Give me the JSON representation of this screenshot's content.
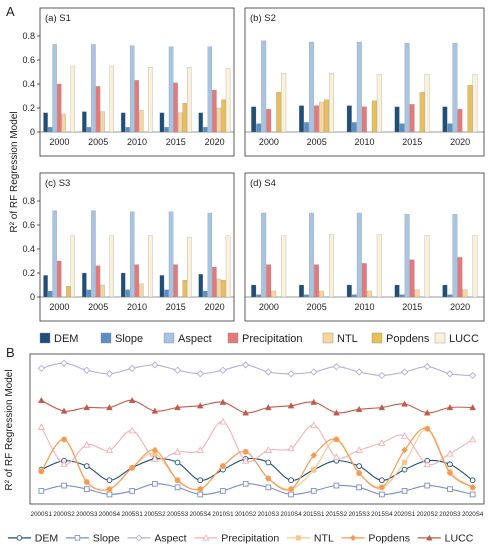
{
  "panel_labels": {
    "a": "A",
    "b": "B"
  },
  "variables": [
    "DEM",
    "Slope",
    "Aspect",
    "Precipitation",
    "NTL",
    "Popdens",
    "LUCC"
  ],
  "colors": {
    "DEM": "#1f4e79",
    "Slope": "#5b8fc3",
    "Aspect": "#a7c4e3",
    "Precipitation": "#e3797a",
    "NTL": "#f6d5a1",
    "Popdens": "#e8c05a",
    "LUCC": "#fbf1d9"
  },
  "line_colors": {
    "DEM": "#1f4e79",
    "Slope": "#7d8fc6",
    "Aspect": "#b3afd6",
    "Precipitation": "#f2b1b9",
    "NTL": "#f8c78d",
    "Popdens": "#f29a56",
    "LUCC": "#bd5b4c"
  },
  "chart_data": [
    {
      "type": "bar",
      "panel": "a",
      "title": "(a) S1",
      "categories": [
        "2000",
        "2005",
        "2010",
        "2015",
        "2020"
      ],
      "ylim": [
        0,
        0.8
      ],
      "yticks": [
        "0",
        "0.2",
        "0.4",
        "0.6",
        "0.8"
      ],
      "ylabel": "R² of RF Regression Model",
      "series": [
        {
          "name": "DEM",
          "values": [
            0.16,
            0.17,
            0.16,
            0.16,
            0.16
          ]
        },
        {
          "name": "Slope",
          "values": [
            0.04,
            0.04,
            0.04,
            0.04,
            0.04
          ]
        },
        {
          "name": "Aspect",
          "values": [
            0.73,
            0.73,
            0.72,
            0.71,
            0.71
          ]
        },
        {
          "name": "Precipitation",
          "values": [
            0.4,
            0.38,
            0.43,
            0.41,
            0.35
          ]
        },
        {
          "name": "NTL",
          "values": [
            0.15,
            0.17,
            0.18,
            0.16,
            0.2
          ]
        },
        {
          "name": "Popdens",
          "values": [
            0.0,
            0.0,
            0.0,
            0.24,
            0.27
          ]
        },
        {
          "name": "LUCC",
          "values": [
            0.55,
            0.55,
            0.54,
            0.54,
            0.53
          ]
        }
      ]
    },
    {
      "type": "bar",
      "panel": "b",
      "title": "(b) S2",
      "categories": [
        "2000",
        "2005",
        "2010",
        "2015",
        "2020"
      ],
      "ylim": [
        0,
        0.8
      ],
      "series": [
        {
          "name": "DEM",
          "values": [
            0.21,
            0.22,
            0.22,
            0.21,
            0.21
          ]
        },
        {
          "name": "Slope",
          "values": [
            0.07,
            0.08,
            0.08,
            0.07,
            0.07
          ]
        },
        {
          "name": "Aspect",
          "values": [
            0.76,
            0.75,
            0.75,
            0.74,
            0.74
          ]
        },
        {
          "name": "Precipitation",
          "values": [
            0.19,
            0.22,
            0.21,
            0.23,
            0.19
          ]
        },
        {
          "name": "NTL",
          "values": [
            0.0,
            0.25,
            0.0,
            0.0,
            0.0
          ]
        },
        {
          "name": "Popdens",
          "values": [
            0.33,
            0.27,
            0.26,
            0.33,
            0.39
          ]
        },
        {
          "name": "LUCC",
          "values": [
            0.49,
            0.49,
            0.48,
            0.48,
            0.48
          ]
        }
      ]
    },
    {
      "type": "bar",
      "panel": "c",
      "title": "(c) S3",
      "categories": [
        "2000",
        "2005",
        "2010",
        "2015",
        "2020"
      ],
      "ylim": [
        0,
        0.8
      ],
      "yticks": [
        "0",
        "0.2",
        "0.4",
        "0.6",
        "0.8"
      ],
      "series": [
        {
          "name": "DEM",
          "values": [
            0.18,
            0.2,
            0.2,
            0.18,
            0.19
          ]
        },
        {
          "name": "Slope",
          "values": [
            0.05,
            0.06,
            0.06,
            0.06,
            0.05
          ]
        },
        {
          "name": "Aspect",
          "values": [
            0.72,
            0.72,
            0.71,
            0.71,
            0.7
          ]
        },
        {
          "name": "Precipitation",
          "values": [
            0.3,
            0.26,
            0.27,
            0.27,
            0.25
          ]
        },
        {
          "name": "NTL",
          "values": [
            0.0,
            0.1,
            0.11,
            0.0,
            0.15
          ]
        },
        {
          "name": "Popdens",
          "values": [
            0.09,
            0.0,
            0.0,
            0.14,
            0.14
          ]
        },
        {
          "name": "LUCC",
          "values": [
            0.51,
            0.51,
            0.51,
            0.5,
            0.51
          ]
        }
      ]
    },
    {
      "type": "bar",
      "panel": "d",
      "title": "(d) S4",
      "categories": [
        "2000",
        "2005",
        "2010",
        "2015",
        "2020"
      ],
      "ylim": [
        0,
        0.8
      ],
      "series": [
        {
          "name": "DEM",
          "values": [
            0.1,
            0.1,
            0.1,
            0.1,
            0.1
          ]
        },
        {
          "name": "Slope",
          "values": [
            0.02,
            0.02,
            0.02,
            0.02,
            0.02
          ]
        },
        {
          "name": "Aspect",
          "values": [
            0.7,
            0.7,
            0.7,
            0.69,
            0.69
          ]
        },
        {
          "name": "Precipitation",
          "values": [
            0.27,
            0.27,
            0.28,
            0.31,
            0.33
          ]
        },
        {
          "name": "NTL",
          "values": [
            0.05,
            0.05,
            0.05,
            0.06,
            0.06
          ]
        },
        {
          "name": "Popdens",
          "values": [
            0.0,
            0.0,
            0.0,
            0.0,
            0.0
          ]
        },
        {
          "name": "LUCC",
          "values": [
            0.51,
            0.52,
            0.52,
            0.51,
            0.51
          ]
        }
      ]
    },
    {
      "type": "line",
      "panel": "B",
      "ylabel": "R² of RF Regression Model",
      "ylim": [
        0,
        0.8
      ],
      "x": [
        "2000S1",
        "2000S2",
        "2000S3",
        "2000S4",
        "2005S1",
        "2005S2",
        "2005S3",
        "2005S4",
        "2010S1",
        "2010S2",
        "2010S3",
        "2010S4",
        "2015S1",
        "2015S2",
        "2015S3",
        "2015S4",
        "2020S1",
        "2020S2",
        "2020S3",
        "2020S4"
      ],
      "series": [
        {
          "name": "DEM",
          "values": [
            0.16,
            0.21,
            0.18,
            0.1,
            0.17,
            0.22,
            0.2,
            0.1,
            0.16,
            0.22,
            0.2,
            0.1,
            0.16,
            0.21,
            0.18,
            0.1,
            0.16,
            0.21,
            0.19,
            0.1
          ]
        },
        {
          "name": "Slope",
          "values": [
            0.04,
            0.07,
            0.05,
            0.02,
            0.04,
            0.08,
            0.06,
            0.02,
            0.04,
            0.08,
            0.06,
            0.02,
            0.04,
            0.07,
            0.06,
            0.02,
            0.04,
            0.07,
            0.05,
            0.02
          ]
        },
        {
          "name": "Aspect",
          "values": [
            0.73,
            0.76,
            0.72,
            0.7,
            0.73,
            0.75,
            0.72,
            0.7,
            0.72,
            0.75,
            0.71,
            0.7,
            0.71,
            0.74,
            0.71,
            0.69,
            0.71,
            0.74,
            0.7,
            0.69
          ]
        },
        {
          "name": "Precipitation",
          "values": [
            0.4,
            0.19,
            0.3,
            0.27,
            0.38,
            0.22,
            0.26,
            0.27,
            0.43,
            0.21,
            0.27,
            0.28,
            0.41,
            0.23,
            0.27,
            0.31,
            0.35,
            0.19,
            0.25,
            0.33
          ]
        },
        {
          "name": "NTL",
          "values": [
            0.15,
            0.33,
            0.09,
            0.05,
            0.17,
            0.25,
            0.1,
            0.05,
            0.18,
            0.26,
            0.11,
            0.05,
            0.16,
            0.33,
            0.14,
            0.06,
            0.2,
            0.39,
            0.15,
            0.06
          ]
        },
        {
          "name": "Popdens",
          "values": [
            0.15,
            0.33,
            0.09,
            0.05,
            0.17,
            0.27,
            0.1,
            0.05,
            0.18,
            0.26,
            0.11,
            0.05,
            0.24,
            0.33,
            0.14,
            0.06,
            0.27,
            0.39,
            0.14,
            0.06
          ]
        },
        {
          "name": "LUCC",
          "values": [
            0.55,
            0.49,
            0.51,
            0.51,
            0.55,
            0.49,
            0.51,
            0.52,
            0.54,
            0.48,
            0.51,
            0.52,
            0.54,
            0.48,
            0.5,
            0.51,
            0.53,
            0.48,
            0.51,
            0.51
          ]
        }
      ]
    }
  ]
}
